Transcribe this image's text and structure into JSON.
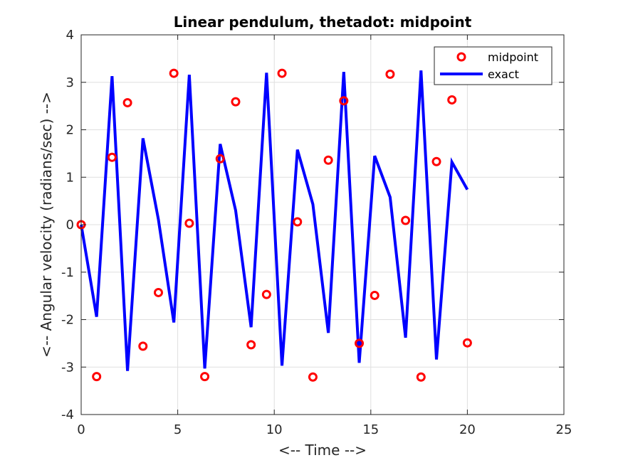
{
  "chart_data": {
    "type": "line",
    "title": "Linear pendulum, thetadot: midpoint",
    "xlabel": "<-- Time -->",
    "ylabel": "<-- Angular velocity (radians/sec) -->",
    "xlim": [
      0,
      25
    ],
    "ylim": [
      -4,
      4
    ],
    "xticks": [
      0,
      5,
      10,
      15,
      20,
      25
    ],
    "yticks": [
      -4,
      -3,
      -2,
      -1,
      0,
      1,
      2,
      3,
      4
    ],
    "grid": true,
    "legend_position": "top-right",
    "series": [
      {
        "name": "midpoint",
        "style": "markers",
        "marker": "circle",
        "color": "#ff0000",
        "x": [
          0,
          0.8,
          1.6,
          2.4,
          3.2,
          4.0,
          4.8,
          5.6,
          6.4,
          7.2,
          8.0,
          8.8,
          9.6,
          10.4,
          11.2,
          12.0,
          12.8,
          13.6,
          14.4,
          15.2,
          16.0,
          16.8,
          17.6,
          18.4,
          19.2,
          20.0
        ],
        "y": [
          0,
          -3.2,
          1.42,
          2.57,
          -2.56,
          -1.43,
          3.19,
          0.03,
          -3.2,
          1.39,
          2.59,
          -2.53,
          -1.47,
          3.19,
          0.06,
          -3.21,
          1.36,
          2.61,
          -2.5,
          -1.49,
          3.17,
          0.09,
          -3.21,
          1.33,
          2.63,
          -2.49
        ]
      },
      {
        "name": "exact",
        "style": "line",
        "color": "#0000ff",
        "x": [
          0,
          0.8,
          1.6,
          2.4,
          3.2,
          4.0,
          4.8,
          5.6,
          6.4,
          7.2,
          8.0,
          8.8,
          9.6,
          10.4,
          11.2,
          12.0,
          12.8,
          13.6,
          14.4,
          15.2,
          16.0,
          16.8,
          17.6,
          18.4,
          19.2,
          20.0
        ],
        "y": [
          0,
          -1.94,
          3.13,
          -3.08,
          1.82,
          0.11,
          -2.06,
          3.16,
          -3.03,
          1.7,
          0.3,
          -2.16,
          3.2,
          -2.97,
          1.58,
          0.43,
          -2.28,
          3.22,
          -2.91,
          1.45,
          0.58,
          -2.38,
          3.25,
          -2.84,
          1.32,
          0.74
        ]
      }
    ]
  }
}
